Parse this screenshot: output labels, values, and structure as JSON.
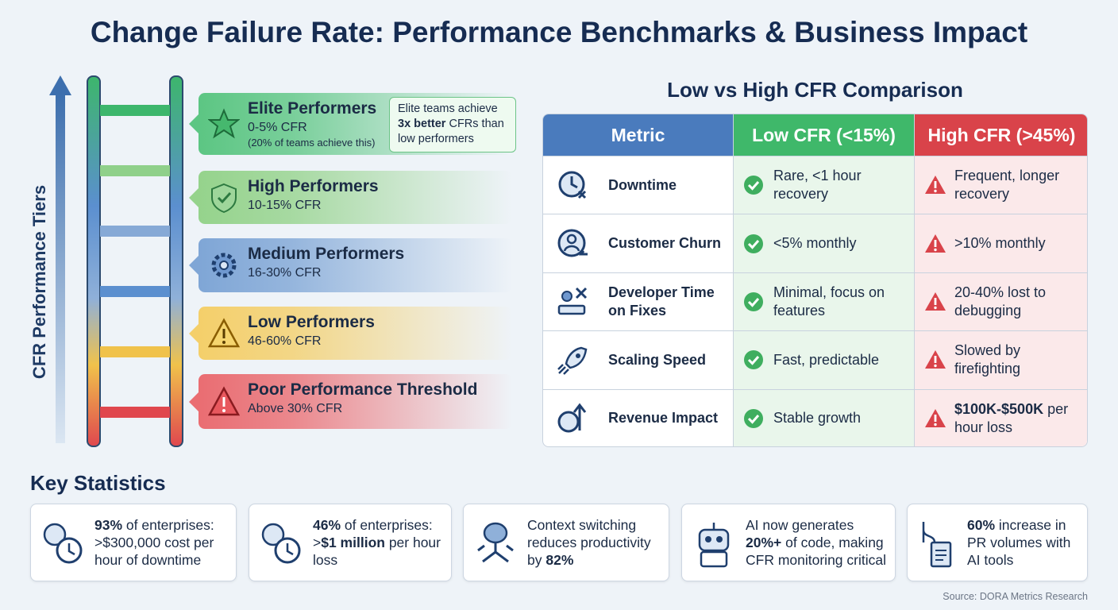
{
  "title": "Change Failure Rate: Performance Benchmarks & Business Impact",
  "ladder": {
    "axis_label": "CFR Performance Tiers",
    "tiers": [
      {
        "name": "Elite Performers",
        "range": "0-5% CFR",
        "note": "(20% of teams achieve this)"
      },
      {
        "name": "High Performers",
        "range": "10-15% CFR"
      },
      {
        "name": "Medium Performers",
        "range": "16-30% CFR"
      },
      {
        "name": "Low Performers",
        "range": "46-60% CFR"
      },
      {
        "name": "Poor Performance Threshold",
        "range": "Above 30% CFR"
      }
    ],
    "callout": [
      {
        "text": "Elite teams achieve "
      },
      {
        "text": "3x better",
        "bold": true
      },
      {
        "text": " CFRs than low performers"
      }
    ]
  },
  "comparison": {
    "title": "Low vs High CFR Comparison",
    "headers": [
      "Metric",
      "Low CFR (<15%)",
      "High CFR (>45%)"
    ],
    "rows": [
      {
        "metric": "Downtime",
        "low": "Rare, <1 hour recovery",
        "high": "Frequent, longer recovery"
      },
      {
        "metric": "Customer Churn",
        "low": "<5% monthly",
        "high": ">10% monthly"
      },
      {
        "metric": "Developer Time on Fixes",
        "low": "Minimal, focus on features",
        "high": "20-40% lost to debugging"
      },
      {
        "metric": "Scaling Speed",
        "low": "Fast, predictable",
        "high": "Slowed by firefighting"
      },
      {
        "metric": "Revenue Impact",
        "low": "Stable growth",
        "high": [
          {
            "text": "$100K-$500K",
            "bold": true
          },
          {
            "text": " per hour loss"
          }
        ]
      }
    ]
  },
  "key_statistics": {
    "title": "Key Statistics",
    "items": [
      [
        {
          "text": "93%",
          "bold": true
        },
        {
          "text": " of enterprises: >$300,000 cost per hour of downtime"
        }
      ],
      [
        {
          "text": "46%",
          "bold": true
        },
        {
          "text": " of enterprises: >"
        },
        {
          "text": "$1 million",
          "bold": true
        },
        {
          "text": " per hour loss"
        }
      ],
      [
        {
          "text": "Context switching reduces productivity by "
        },
        {
          "text": "82%",
          "bold": true
        }
      ],
      [
        {
          "text": "AI now generates "
        },
        {
          "text": "20%+",
          "bold": true
        },
        {
          "text": " of code, making CFR monitoring critical"
        }
      ],
      [
        {
          "text": "60%",
          "bold": true
        },
        {
          "text": " increase in PR volumes with AI tools"
        }
      ]
    ]
  },
  "source": "Source: DORA Metrics Research"
}
